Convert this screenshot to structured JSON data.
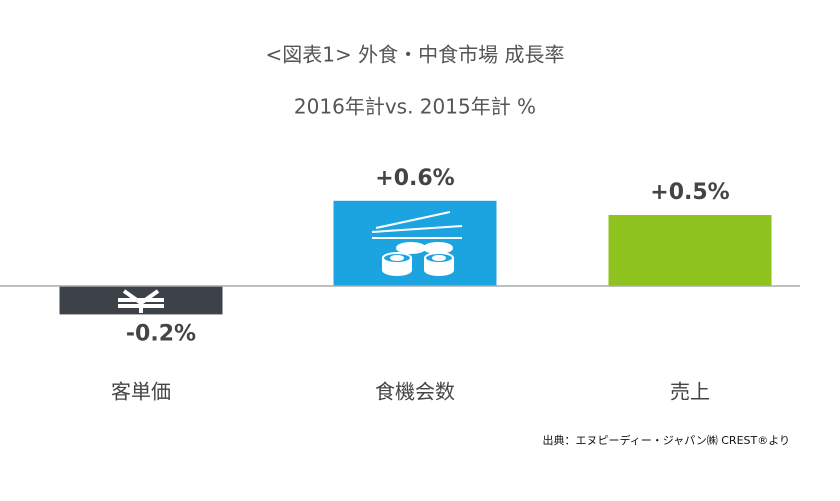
{
  "chart_data": {
    "type": "bar",
    "title": "<図表1> 外食・中食市場 成長率",
    "subtitle": "2016年計vs. 2015年計 %",
    "categories": [
      "客単価",
      "食機会数",
      "売上"
    ],
    "values": [
      -0.2,
      0.6,
      0.5
    ],
    "value_labels": [
      "-0.2%",
      "+0.6%",
      "+0.5%"
    ],
    "colors": [
      "#3d4148",
      "#1ba4e0",
      "#8dc21f"
    ],
    "source": "出典：エヌピーディー・ジャパン㈱ CREST®より"
  }
}
